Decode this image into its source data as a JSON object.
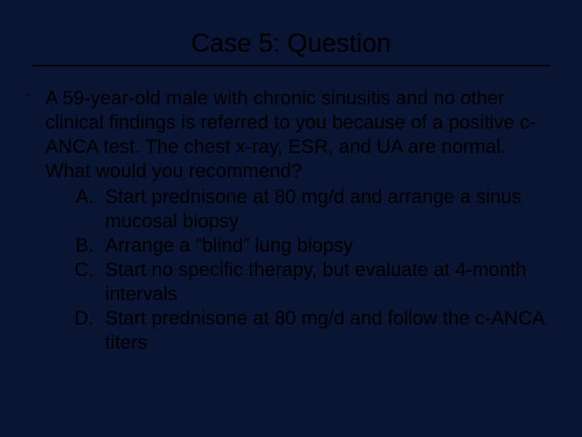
{
  "colors": {
    "background": "#0a1433",
    "text": "#000000",
    "underline": "#000000"
  },
  "typography": {
    "title_fontsize": 32,
    "body_fontsize": 24,
    "font_family": "Arial"
  },
  "slide": {
    "title": "Case 5:  Question",
    "bullet_glyph": "˜",
    "question": "A 59-year-old male with chronic sinusitis and no other clinical findings is referred to you because of a positive c-ANCA test.  The chest x-ray, ESR, and UA are normal.  What would you recommend?",
    "options": [
      {
        "letter": "A.",
        "text": "Start prednisone at 80 mg/d and arrange a sinus mucosal biopsy"
      },
      {
        "letter": "B.",
        "text": "Arrange a “blind” lung biopsy"
      },
      {
        "letter": "C.",
        "text": "Start no specific therapy, but evaluate at 4-month intervals"
      },
      {
        "letter": "D.",
        "text": "Start prednisone at 80 mg/d and follow the c-ANCA titers"
      }
    ]
  }
}
